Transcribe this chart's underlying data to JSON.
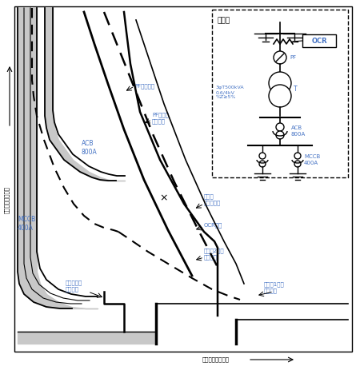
{
  "bg_color": "#ffffff",
  "border_color": "#000000",
  "fill_color": "#c8c8c8",
  "fill_dark": "#a0a0a0",
  "text_color": "#4472c4",
  "inset_title": "系統図",
  "ocr_label": "OCR",
  "pf_label": "PF",
  "transformer_label": "3φT500kVA\n0.6/4kV\n%Z≥5%",
  "t_label": "T",
  "acb_label_inset": "ACB\n800A",
  "mccb_label_inset": "MCCB\n400A",
  "acb_label_main": "ACB\n800A",
  "mccb_label_main": "MCCB\n400A",
  "ylabel": "時間（対数目盛）",
  "xlabel": "電流（対数目盛）",
  "label_pf_fusing": "PF溶断特性",
  "label_pf_short": "PF短絡間\n許容電流",
  "label_transformer_withstand": "変圧器\n短時間耐量",
  "label_ocr": "OCR特性",
  "label_transformer_2nd": "変圧器2次側\n短絡電流",
  "label_inrush": "変圧器励磁\n突入電流",
  "label_transformer_1st": "変圧器1次側\n短絡電流"
}
